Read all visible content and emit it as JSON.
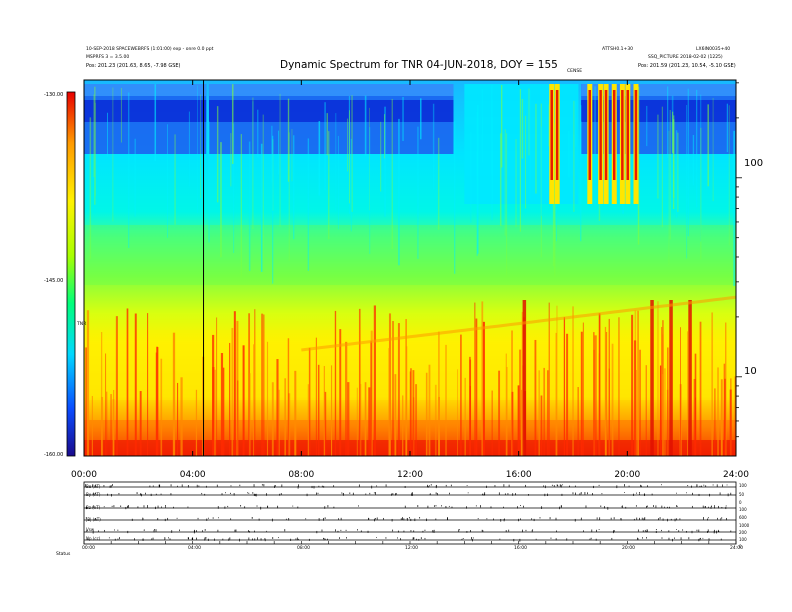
{
  "header": {
    "left_line1": "10-SEP-2018 SPACEWEBRFS (1:01:00) exp - onre 0.0 ppt",
    "left_line2": "MSPRFS 3 = 3.5.00",
    "left_line3": "Pos: 201.23 (201.63, 8.65, -7.98 GSE)",
    "right_line1_a": "ATTSH0.1+30",
    "right_line1_b": "LX6IN0035+40",
    "right_line2": "SSQ_PICTURE 2018-02-02 (1225)",
    "right_line3": "Pos: 201.59 (201.23, 10.54, -5.10 GSE)",
    "small_top_mid": "CENSE"
  },
  "chart_data": {
    "type": "heatmap",
    "title": "Dynamic Spectrum for TNR 04-JUN-2018, DOY = 155",
    "x_ticks": [
      "00:00",
      "04:00",
      "08:00",
      "12:00",
      "16:00",
      "20:00",
      "24:00"
    ],
    "x_range": [
      0,
      24
    ],
    "y_ticks_right": [
      "100",
      "10"
    ],
    "y_ticks_right_values": [
      100,
      10
    ],
    "y_range_right": [
      4,
      310
    ],
    "y_scale": "log",
    "colorbar": {
      "labels": [
        "-130.00",
        "-145.00",
        "-160.00"
      ],
      "values": [
        -130,
        -145,
        -160
      ],
      "axis_label": "TNR",
      "colors": [
        "#1a0a8c",
        "#0a4cff",
        "#00d8ff",
        "#00ff7a",
        "#a8ff00",
        "#fff200",
        "#ff9a00",
        "#e80000"
      ]
    },
    "marker_line_hour": 4.4,
    "panel_labels_left": [
      "Bx (nT)",
      "By (nT)",
      "Bz (nT)",
      "|B| (nT)",
      "Vsw",
      "Np (cc)"
    ],
    "panel_labels_right": [
      "100",
      "50",
      "0",
      "100",
      "600",
      "1000",
      "200",
      "100",
      "0"
    ],
    "panel_x_ticks": [
      "00:00",
      "04:00",
      "08:00",
      "12:00",
      "16:00",
      "20:00",
      "24:00"
    ],
    "footer_label": "Status"
  }
}
